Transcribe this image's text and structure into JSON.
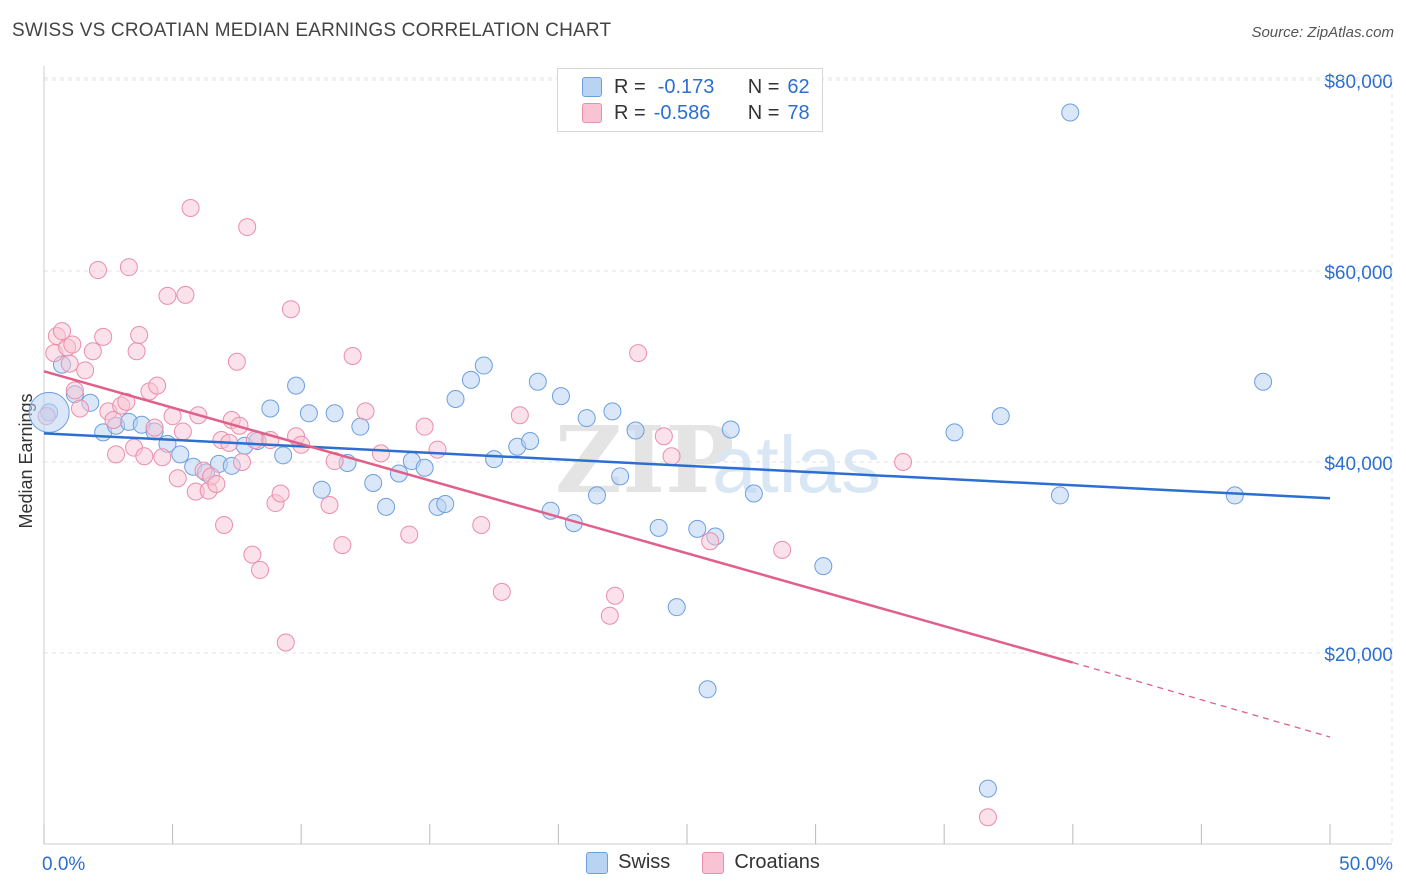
{
  "title": "SWISS VS CROATIAN MEDIAN EARNINGS CORRELATION CHART",
  "source": "Source: ZipAtlas.com",
  "watermark": "ZIPatlas",
  "legend": {
    "rows": [
      {
        "r_label": "R =",
        "r_value": "-0.173",
        "n_label": "N =",
        "n_value": "62"
      },
      {
        "r_label": "R =",
        "r_value": "-0.586",
        "n_label": "N =",
        "n_value": "78"
      }
    ]
  },
  "bottom_legend": {
    "swiss": "Swiss",
    "croatians": "Croatians"
  },
  "colors": {
    "swiss_fill": "#b9d3f2",
    "swiss_stroke": "#6d9fe0",
    "swiss_line": "#2c6fd1",
    "croat_fill": "#f8c4d4",
    "croat_stroke": "#ec8eab",
    "croat_line": "#e0608a",
    "axis_text": "#2c6fd1",
    "grid": "#e3e3e3"
  },
  "chart_data": {
    "type": "scatter",
    "title": "SWISS VS CROATIAN MEDIAN EARNINGS CORRELATION CHART",
    "xlabel": "",
    "ylabel": "Median Earnings",
    "xlim": [
      0,
      50
    ],
    "ylim": [
      0,
      80000
    ],
    "x_tick_labels": [
      "0.0%",
      "50.0%"
    ],
    "y_ticks": [
      20000,
      40000,
      60000,
      80000
    ],
    "y_tick_labels": [
      "$20,000",
      "$40,000",
      "$60,000",
      "$80,000"
    ],
    "grid": true,
    "legend_position": "top-center",
    "series": [
      {
        "name": "Swiss",
        "r": -0.173,
        "n": 62,
        "trend": {
          "x": [
            0,
            50
          ],
          "y": [
            43000,
            36200
          ]
        },
        "points": [
          [
            0.2,
            45200
          ],
          [
            0.7,
            50200
          ],
          [
            1.2,
            47100
          ],
          [
            1.8,
            46200
          ],
          [
            2.3,
            43100
          ],
          [
            2.8,
            43800
          ],
          [
            3.3,
            44200
          ],
          [
            3.8,
            43900
          ],
          [
            4.3,
            43200
          ],
          [
            4.8,
            41900
          ],
          [
            5.3,
            40800
          ],
          [
            5.8,
            39500
          ],
          [
            6.3,
            38900
          ],
          [
            6.8,
            39800
          ],
          [
            7.3,
            39600
          ],
          [
            7.8,
            41700
          ],
          [
            8.3,
            42200
          ],
          [
            8.8,
            45600
          ],
          [
            9.3,
            40700
          ],
          [
            9.8,
            48000
          ],
          [
            10.3,
            45100
          ],
          [
            10.8,
            37100
          ],
          [
            11.3,
            45100
          ],
          [
            11.8,
            39900
          ],
          [
            12.3,
            43700
          ],
          [
            12.8,
            37800
          ],
          [
            13.3,
            35300
          ],
          [
            13.8,
            38800
          ],
          [
            14.3,
            40100
          ],
          [
            14.8,
            39400
          ],
          [
            15.3,
            35300
          ],
          [
            15.6,
            35600
          ],
          [
            16.0,
            46600
          ],
          [
            16.6,
            48600
          ],
          [
            17.1,
            50100
          ],
          [
            17.5,
            40300
          ],
          [
            18.4,
            41600
          ],
          [
            18.9,
            42200
          ],
          [
            19.2,
            48400
          ],
          [
            19.7,
            34900
          ],
          [
            20.1,
            46900
          ],
          [
            20.6,
            33600
          ],
          [
            21.1,
            44600
          ],
          [
            21.5,
            36500
          ],
          [
            22.1,
            45300
          ],
          [
            22.4,
            38500
          ],
          [
            23.0,
            43300
          ],
          [
            23.9,
            33100
          ],
          [
            24.6,
            24800
          ],
          [
            25.4,
            33000
          ],
          [
            25.8,
            16200
          ],
          [
            26.1,
            32200
          ],
          [
            26.7,
            43400
          ],
          [
            27.6,
            36700
          ],
          [
            30.3,
            29100
          ],
          [
            35.4,
            43100
          ],
          [
            36.7,
            5800
          ],
          [
            37.2,
            44800
          ],
          [
            39.5,
            36500
          ],
          [
            39.9,
            76600
          ],
          [
            46.3,
            36500
          ],
          [
            47.4,
            48400
          ]
        ]
      },
      {
        "name": "Croatians",
        "r": -0.586,
        "n": 78,
        "trend": {
          "x": [
            0,
            40,
            50
          ],
          "y": [
            49500,
            19000,
            11200
          ],
          "dashed_from_x": 40
        },
        "points": [
          [
            0.1,
            44800
          ],
          [
            0.4,
            51400
          ],
          [
            0.5,
            53200
          ],
          [
            0.7,
            53700
          ],
          [
            0.9,
            52000
          ],
          [
            1.0,
            50300
          ],
          [
            1.1,
            52300
          ],
          [
            1.2,
            47500
          ],
          [
            1.4,
            45600
          ],
          [
            1.6,
            49600
          ],
          [
            1.9,
            51600
          ],
          [
            2.1,
            60100
          ],
          [
            2.3,
            53100
          ],
          [
            2.5,
            45300
          ],
          [
            2.7,
            44400
          ],
          [
            2.8,
            40800
          ],
          [
            3.0,
            45900
          ],
          [
            3.2,
            46300
          ],
          [
            3.3,
            60400
          ],
          [
            3.5,
            41500
          ],
          [
            3.6,
            51600
          ],
          [
            3.7,
            53300
          ],
          [
            3.9,
            40600
          ],
          [
            4.1,
            47400
          ],
          [
            4.3,
            43600
          ],
          [
            4.4,
            48000
          ],
          [
            4.6,
            40500
          ],
          [
            4.8,
            57400
          ],
          [
            5.0,
            44800
          ],
          [
            5.2,
            38300
          ],
          [
            5.4,
            43200
          ],
          [
            5.5,
            57500
          ],
          [
            5.7,
            66600
          ],
          [
            5.9,
            36900
          ],
          [
            6.0,
            44900
          ],
          [
            6.2,
            39100
          ],
          [
            6.4,
            37000
          ],
          [
            6.5,
            38500
          ],
          [
            6.7,
            37700
          ],
          [
            6.9,
            42300
          ],
          [
            7.0,
            33400
          ],
          [
            7.2,
            42000
          ],
          [
            7.3,
            44400
          ],
          [
            7.5,
            50500
          ],
          [
            7.6,
            43800
          ],
          [
            7.7,
            40000
          ],
          [
            7.9,
            64600
          ],
          [
            8.1,
            30300
          ],
          [
            8.2,
            42300
          ],
          [
            8.4,
            28700
          ],
          [
            8.8,
            42300
          ],
          [
            9.0,
            35700
          ],
          [
            9.2,
            36700
          ],
          [
            9.4,
            21100
          ],
          [
            9.6,
            56000
          ],
          [
            9.8,
            42700
          ],
          [
            10.0,
            41800
          ],
          [
            11.1,
            35500
          ],
          [
            11.3,
            40100
          ],
          [
            11.6,
            31300
          ],
          [
            12.0,
            51100
          ],
          [
            12.5,
            45300
          ],
          [
            13.1,
            40900
          ],
          [
            14.2,
            32400
          ],
          [
            14.8,
            43700
          ],
          [
            15.3,
            41300
          ],
          [
            17.0,
            33400
          ],
          [
            17.8,
            26400
          ],
          [
            18.5,
            44900
          ],
          [
            22.0,
            23900
          ],
          [
            22.2,
            26000
          ],
          [
            23.1,
            51400
          ],
          [
            24.1,
            42700
          ],
          [
            24.4,
            40600
          ],
          [
            25.9,
            31700
          ],
          [
            28.7,
            30800
          ],
          [
            33.4,
            40000
          ],
          [
            36.7,
            2800
          ]
        ]
      }
    ]
  }
}
